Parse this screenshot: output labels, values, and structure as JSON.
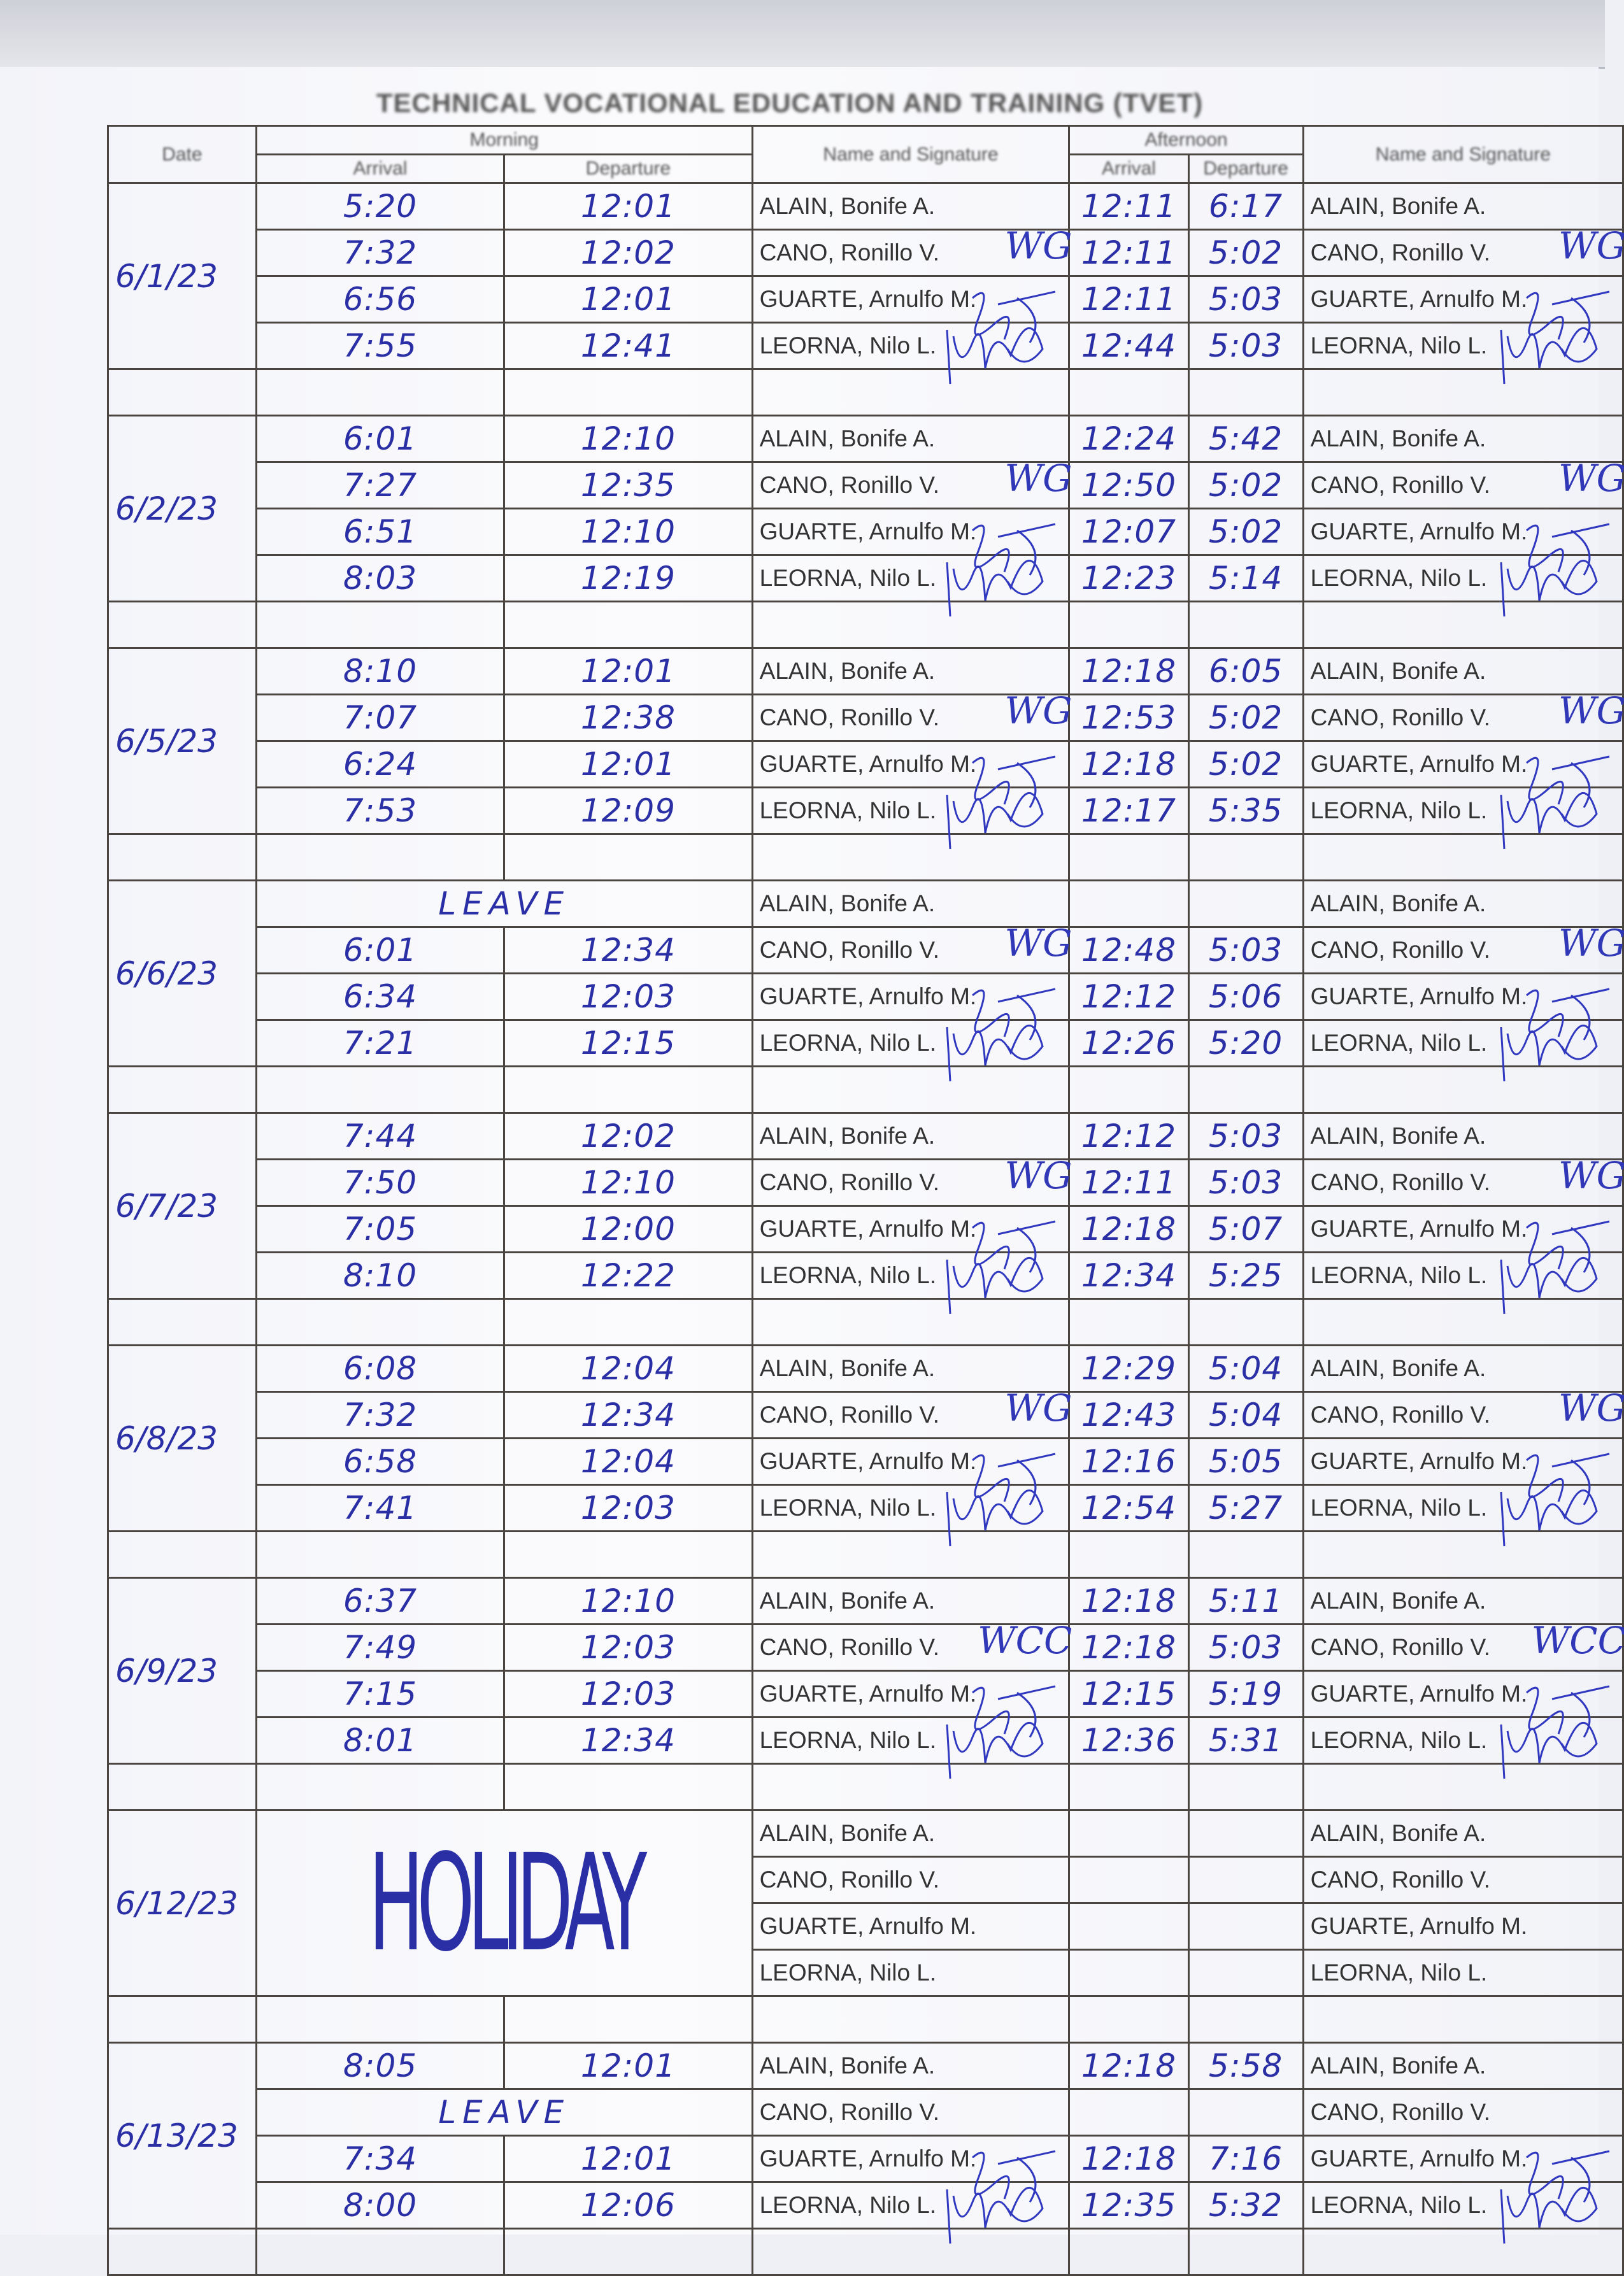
{
  "document_title": "TECHNICAL VOCATIONAL EDUCATION AND TRAINING (TVET)",
  "headers": {
    "date": "Date",
    "morning": "Morning",
    "afternoon": "Afternoon",
    "arrival": "Arrival",
    "departure": "Departure",
    "name_signature": "Name and Signature"
  },
  "ink_color": "#2b2fa6",
  "days": [
    {
      "date": "6/1/23",
      "entries": [
        {
          "name": "ALAIN, Bonife A.",
          "am_in": "5:20",
          "am_out": "12:01",
          "pm_in": "12:11",
          "pm_out": "6:17"
        },
        {
          "name": "CANO, Ronillo V.",
          "am_in": "7:32",
          "am_out": "12:02",
          "pm_in": "12:11",
          "pm_out": "5:02",
          "sig": "WG"
        },
        {
          "name": "GUARTE, Arnulfo M.",
          "am_in": "6:56",
          "am_out": "12:01",
          "pm_in": "12:11",
          "pm_out": "5:03"
        },
        {
          "name": "LEORNA, Nilo L.",
          "am_in": "7:55",
          "am_out": "12:41",
          "pm_in": "12:44",
          "pm_out": "5:03",
          "scribble": true
        }
      ]
    },
    {
      "date": "6/2/23",
      "entries": [
        {
          "name": "ALAIN, Bonife A.",
          "am_in": "6:01",
          "am_out": "12:10",
          "pm_in": "12:24",
          "pm_out": "5:42"
        },
        {
          "name": "CANO, Ronillo V.",
          "am_in": "7:27",
          "am_out": "12:35",
          "pm_in": "12:50",
          "pm_out": "5:02",
          "sig": "WG"
        },
        {
          "name": "GUARTE, Arnulfo M.",
          "am_in": "6:51",
          "am_out": "12:10",
          "pm_in": "12:07",
          "pm_out": "5:02"
        },
        {
          "name": "LEORNA, Nilo L.",
          "am_in": "8:03",
          "am_out": "12:19",
          "pm_in": "12:23",
          "pm_out": "5:14",
          "scribble": true
        }
      ]
    },
    {
      "date": "6/5/23",
      "entries": [
        {
          "name": "ALAIN, Bonife A.",
          "am_in": "8:10",
          "am_out": "12:01",
          "pm_in": "12:18",
          "pm_out": "6:05"
        },
        {
          "name": "CANO, Ronillo V.",
          "am_in": "7:07",
          "am_out": "12:38",
          "pm_in": "12:53",
          "pm_out": "5:02",
          "sig": "WG"
        },
        {
          "name": "GUARTE, Arnulfo M.",
          "am_in": "6:24",
          "am_out": "12:01",
          "pm_in": "12:18",
          "pm_out": "5:02"
        },
        {
          "name": "LEORNA, Nilo L.",
          "am_in": "7:53",
          "am_out": "12:09",
          "pm_in": "12:17",
          "pm_out": "5:35",
          "scribble": true
        }
      ]
    },
    {
      "date": "6/6/23",
      "entries": [
        {
          "name": "ALAIN, Bonife A.",
          "am_note": "LEAVE"
        },
        {
          "name": "CANO, Ronillo V.",
          "am_in": "6:01",
          "am_out": "12:34",
          "pm_in": "12:48",
          "pm_out": "5:03",
          "sig": "WG"
        },
        {
          "name": "GUARTE, Arnulfo M.",
          "am_in": "6:34",
          "am_out": "12:03",
          "pm_in": "12:12",
          "pm_out": "5:06"
        },
        {
          "name": "LEORNA, Nilo L.",
          "am_in": "7:21",
          "am_out": "12:15",
          "pm_in": "12:26",
          "pm_out": "5:20",
          "scribble": true
        }
      ]
    },
    {
      "date": "6/7/23",
      "entries": [
        {
          "name": "ALAIN, Bonife A.",
          "am_in": "7:44",
          "am_out": "12:02",
          "pm_in": "12:12",
          "pm_out": "5:03"
        },
        {
          "name": "CANO, Ronillo V.",
          "am_in": "7:50",
          "am_out": "12:10",
          "pm_in": "12:11",
          "pm_out": "5:03",
          "sig": "WG"
        },
        {
          "name": "GUARTE, Arnulfo M.",
          "am_in": "7:05",
          "am_out": "12:00",
          "pm_in": "12:18",
          "pm_out": "5:07"
        },
        {
          "name": "LEORNA, Nilo L.",
          "am_in": "8:10",
          "am_out": "12:22",
          "pm_in": "12:34",
          "pm_out": "5:25",
          "scribble": true
        }
      ]
    },
    {
      "date": "6/8/23",
      "entries": [
        {
          "name": "ALAIN, Bonife A.",
          "am_in": "6:08",
          "am_out": "12:04",
          "pm_in": "12:29",
          "pm_out": "5:04"
        },
        {
          "name": "CANO, Ronillo V.",
          "am_in": "7:32",
          "am_out": "12:34",
          "pm_in": "12:43",
          "pm_out": "5:04",
          "sig": "WG"
        },
        {
          "name": "GUARTE, Arnulfo M.",
          "am_in": "6:58",
          "am_out": "12:04",
          "pm_in": "12:16",
          "pm_out": "5:05"
        },
        {
          "name": "LEORNA, Nilo L.",
          "am_in": "7:41",
          "am_out": "12:03",
          "pm_in": "12:54",
          "pm_out": "5:27",
          "scribble": true
        }
      ]
    },
    {
      "date": "6/9/23",
      "entries": [
        {
          "name": "ALAIN, Bonife A.",
          "am_in": "6:37",
          "am_out": "12:10",
          "pm_in": "12:18",
          "pm_out": "5:11"
        },
        {
          "name": "CANO, Ronillo V.",
          "am_in": "7:49",
          "am_out": "12:03",
          "pm_in": "12:18",
          "pm_out": "5:03",
          "sig": "WCC"
        },
        {
          "name": "GUARTE, Arnulfo M.",
          "am_in": "7:15",
          "am_out": "12:03",
          "pm_in": "12:15",
          "pm_out": "5:19"
        },
        {
          "name": "LEORNA, Nilo L.",
          "am_in": "8:01",
          "am_out": "12:34",
          "pm_in": "12:36",
          "pm_out": "5:31",
          "scribble": true
        }
      ]
    },
    {
      "date": "6/12/23",
      "note": "HOLIDAY",
      "entries": [
        {
          "name": "ALAIN, Bonife A."
        },
        {
          "name": "CANO, Ronillo V."
        },
        {
          "name": "GUARTE, Arnulfo M."
        },
        {
          "name": "LEORNA, Nilo L."
        }
      ]
    },
    {
      "date": "6/13/23",
      "entries": [
        {
          "name": "ALAIN, Bonife A.",
          "am_in": "8:05",
          "am_out": "12:01",
          "pm_in": "12:18",
          "pm_out": "5:58"
        },
        {
          "name": "CANO, Ronillo V.",
          "am_note": "LEAVE"
        },
        {
          "name": "GUARTE, Arnulfo M.",
          "am_in": "7:34",
          "am_out": "12:01",
          "pm_in": "12:18",
          "pm_out": "7:16"
        },
        {
          "name": "LEORNA, Nilo L.",
          "am_in": "8:00",
          "am_out": "12:06",
          "pm_in": "12:35",
          "pm_out": "5:32",
          "scribble": true
        }
      ]
    }
  ]
}
